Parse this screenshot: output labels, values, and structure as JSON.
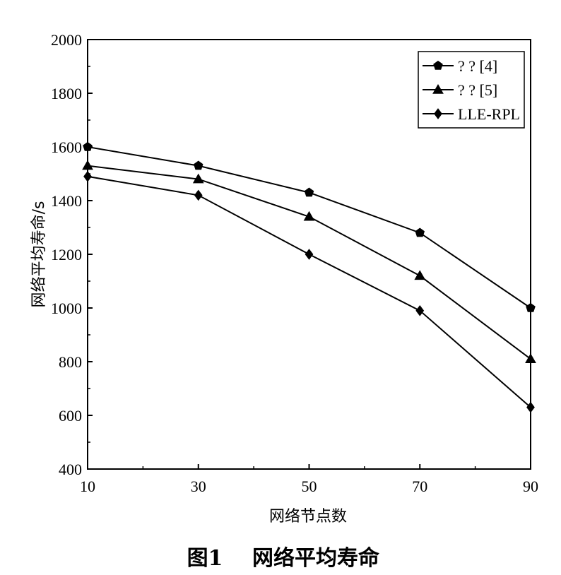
{
  "chart_data": {
    "type": "line",
    "title": "",
    "xlabel": "网络节点数",
    "ylabel": "网络平均寿命/s",
    "x": [
      10,
      30,
      50,
      70,
      90
    ],
    "xlim": [
      10,
      90
    ],
    "ylim": [
      400,
      2000
    ],
    "xticks": [
      "10",
      "30",
      "50",
      "70",
      "90"
    ],
    "yticks": [
      "400",
      "600",
      "800",
      "1000",
      "1200",
      "1400",
      "1600",
      "1800",
      "2000"
    ],
    "grid": false,
    "legend_position": "top-right",
    "series": [
      {
        "name": "? ? [4]",
        "marker": "pentagon",
        "values": [
          1600,
          1530,
          1430,
          1280,
          1000
        ]
      },
      {
        "name": "? ? [5]",
        "marker": "triangle",
        "values": [
          1530,
          1480,
          1340,
          1120,
          810
        ]
      },
      {
        "name": "LLE-RPL",
        "marker": "diamond",
        "values": [
          1490,
          1420,
          1200,
          990,
          630
        ]
      }
    ]
  },
  "figure": {
    "caption_number": "图1",
    "caption_text": "网络平均寿命"
  }
}
